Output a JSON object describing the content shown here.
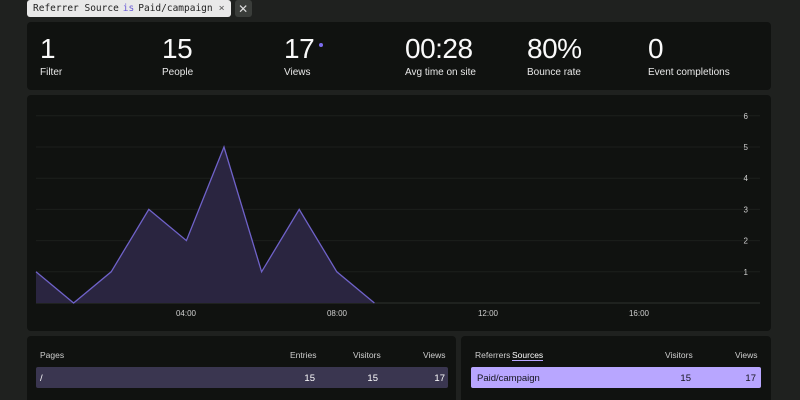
{
  "filter": {
    "field": "Referrer Source",
    "operator": "is",
    "value": "Paid/campaign",
    "remove_glyph": "×",
    "close_glyph": "✕"
  },
  "stats": [
    {
      "value": "1",
      "label": "Filter"
    },
    {
      "value": "15",
      "label": "People"
    },
    {
      "value": "17",
      "label": "Views"
    },
    {
      "value": "00:28",
      "label": "Avg time on site"
    },
    {
      "value": "80%",
      "label": "Bounce rate"
    },
    {
      "value": "0",
      "label": "Event completions"
    }
  ],
  "chart_data": {
    "type": "area",
    "x_ticks": [
      "04:00",
      "08:00",
      "12:00",
      "16:00"
    ],
    "y_ticks": [
      "1",
      "2",
      "3",
      "4",
      "5",
      "6"
    ],
    "ylim": [
      0,
      6
    ],
    "series": [
      {
        "values": [
          1,
          0,
          1,
          3,
          2,
          5,
          1,
          3,
          1,
          0
        ]
      }
    ],
    "colors": {
      "line": "#6f62c9",
      "fill": "#2a2540"
    }
  },
  "pages_table": {
    "headers": {
      "name": "Pages",
      "entries": "Entries",
      "visitors": "Visitors",
      "views": "Views"
    },
    "rows": [
      {
        "name": "/",
        "entries": "15",
        "visitors": "15",
        "views": "17"
      }
    ]
  },
  "sources_table": {
    "tabs": [
      "Referrers",
      "Sources"
    ],
    "active_tab": "Sources",
    "headers": {
      "visitors": "Visitors",
      "views": "Views"
    },
    "rows": [
      {
        "name": "Paid/campaign",
        "visitors": "15",
        "views": "17"
      }
    ]
  },
  "colors": {
    "accent": "#b8a6ff",
    "page_bg": "#1f211f",
    "panel_bg": "#101210"
  }
}
